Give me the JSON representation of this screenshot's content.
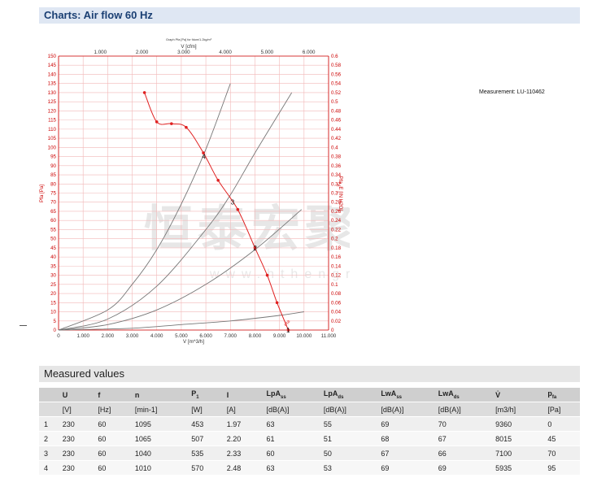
{
  "header": {
    "title": "Charts: Air flow 60 Hz"
  },
  "measurement_label": "Measurement: LU-110462",
  "watermark": {
    "main": "恒泰宏聚机电",
    "sub": "www.hthengrui.cn"
  },
  "chart_data": {
    "type": "line",
    "caption": "Graph Pfa [Pa] for fdom/1.2kg/m³",
    "x_top_label": "V [cfm]",
    "x_top_ticks": [
      "1.000",
      "2.000",
      "3.000",
      "4.000",
      "5.000",
      "6.000"
    ],
    "x_label": "V [m^3/h]",
    "x_ticks": [
      "0",
      "1.000",
      "2.000",
      "3.000",
      "4.000",
      "5.000",
      "6.000",
      "7.000",
      "8.000",
      "9.000",
      "10.000",
      "11.000"
    ],
    "xlim": [
      0,
      11000
    ],
    "y_label": "Pfa [Pa]",
    "ylim": [
      0,
      150
    ],
    "y_ticks": [
      "0",
      "5",
      "10",
      "15",
      "20",
      "25",
      "30",
      "35",
      "40",
      "45",
      "50",
      "55",
      "60",
      "65",
      "70",
      "75",
      "80",
      "85",
      "90",
      "95",
      "100",
      "105",
      "110",
      "115",
      "120",
      "125",
      "130",
      "135",
      "140",
      "145",
      "150"
    ],
    "y2_label": "Pfa_E [IN H2O]",
    "y2_ticks": [
      "0",
      "0.02",
      "0.04",
      "0.06",
      "0.08",
      "0.1",
      "0.12",
      "0.14",
      "0.16",
      "0.18",
      "0.2",
      "0.22",
      "0.24",
      "0.26",
      "0.28",
      "0.3",
      "0.32",
      "0.34",
      "0.36",
      "0.38",
      "0.4",
      "0.42",
      "0.44",
      "0.46",
      "0.48",
      "0.5",
      "0.52",
      "0.54",
      "0.56",
      "0.58",
      "0.6"
    ],
    "grid": true,
    "colors": {
      "grid": "#f2b8b8",
      "axis": "#cc0000",
      "curve": "#e02020",
      "system": "#777777",
      "label": "#cc0000"
    },
    "series": [
      {
        "name": "Pfa",
        "x": [
          3500,
          4000,
          4600,
          5200,
          5900,
          6500,
          7300,
          8000,
          8500,
          8900,
          9360
        ],
        "y": [
          130,
          114,
          113,
          111,
          97,
          82,
          66,
          45,
          30,
          15,
          0
        ]
      }
    ],
    "system_curves": [
      {
        "x": [
          0,
          2000,
          3000,
          4000,
          5000,
          6000,
          7000
        ],
        "y": [
          0,
          11,
          25,
          44,
          69,
          99,
          135
        ]
      },
      {
        "x": [
          0,
          2000,
          4000,
          6000,
          7000,
          8000,
          9500
        ],
        "y": [
          0,
          6,
          24,
          55,
          74,
          97,
          130
        ]
      },
      {
        "x": [
          0,
          2000,
          4000,
          6000,
          8000,
          9900
        ],
        "y": [
          0,
          3,
          11,
          25,
          44,
          66
        ]
      },
      {
        "x": [
          0,
          3000,
          5000,
          7000,
          9000,
          10000
        ],
        "y": [
          0,
          1,
          3,
          5,
          8,
          10
        ]
      }
    ],
    "operating_points": [
      {
        "label": "4",
        "x": 5935,
        "y": 95
      },
      {
        "label": "3",
        "x": 7100,
        "y": 70
      },
      {
        "label": "2",
        "x": 8015,
        "y": 45
      },
      {
        "label": "1",
        "x": 9360,
        "y": 0
      }
    ]
  },
  "measured": {
    "title": "Measured values",
    "columns": [
      {
        "name": "U",
        "sub": ""
      },
      {
        "name": "f",
        "sub": ""
      },
      {
        "name": "n",
        "sub": ""
      },
      {
        "name": "P",
        "sub": "1"
      },
      {
        "name": "I",
        "sub": ""
      },
      {
        "name": "LpA",
        "sub": "ss"
      },
      {
        "name": "LpA",
        "sub": "ds"
      },
      {
        "name": "LwA",
        "sub": "ss"
      },
      {
        "name": "LwA",
        "sub": "ds"
      },
      {
        "name": "V̇",
        "sub": ""
      },
      {
        "name": "p",
        "sub": "fa"
      }
    ],
    "units": [
      "[V]",
      "[Hz]",
      "[min-1]",
      "[W]",
      "[A]",
      "[dB(A)]",
      "[dB(A)]",
      "[dB(A)]",
      "[dB(A)]",
      "[m3/h]",
      "[Pa]"
    ],
    "rows": [
      {
        "id": "1",
        "cells": [
          "230",
          "60",
          "1095",
          "453",
          "1.97",
          "63",
          "55",
          "69",
          "70",
          "9360",
          "0"
        ]
      },
      {
        "id": "2",
        "cells": [
          "230",
          "60",
          "1065",
          "507",
          "2.20",
          "61",
          "51",
          "68",
          "67",
          "8015",
          "45"
        ]
      },
      {
        "id": "3",
        "cells": [
          "230",
          "60",
          "1040",
          "535",
          "2.33",
          "60",
          "50",
          "67",
          "66",
          "7100",
          "70"
        ]
      },
      {
        "id": "4",
        "cells": [
          "230",
          "60",
          "1010",
          "570",
          "2.48",
          "63",
          "53",
          "69",
          "69",
          "5935",
          "95"
        ]
      }
    ]
  }
}
